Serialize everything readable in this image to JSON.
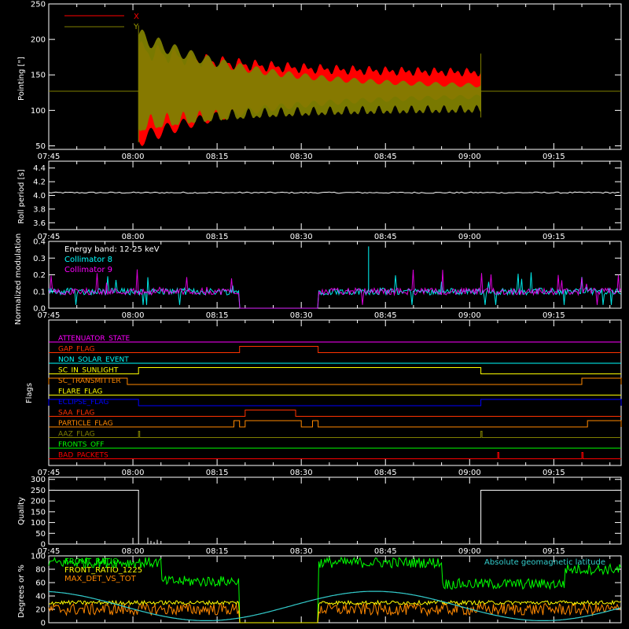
{
  "chart_data": [
    {
      "type": "line",
      "panel": "pointing",
      "ylabel": "Pointing [\"]",
      "ylim": [
        45,
        250
      ],
      "yticks": [
        50,
        100,
        150,
        200,
        250
      ],
      "xlim": [
        "07:45",
        "09:27"
      ],
      "xticks": [
        "07:45",
        "08:00",
        "08:15",
        "08:30",
        "08:45",
        "09:00",
        "09:15"
      ],
      "legend": "top-left",
      "series": [
        {
          "name": "X",
          "color": "#ff0000",
          "baseline": 127,
          "center_start": 122,
          "center_end": 137,
          "amp_start": 75,
          "amp_end": 18,
          "start": "08:01",
          "end": "09:02"
        },
        {
          "name": "Y",
          "color": "#808000",
          "baseline": 127,
          "center_start": 142,
          "center_end": 117,
          "amp_start": 75,
          "amp_end": 18,
          "start": "08:01",
          "end": "09:02"
        }
      ]
    },
    {
      "type": "line",
      "panel": "roll",
      "ylabel": "Roll period [s]",
      "ylim": [
        3.5,
        4.5
      ],
      "yticks": [
        3.6,
        3.8,
        4.0,
        4.2,
        4.4
      ],
      "value": 4.04,
      "color": "#ffffff"
    },
    {
      "type": "line",
      "panel": "modulation",
      "ylabel": "Normalized modulation",
      "ylim": [
        0,
        0.4
      ],
      "yticks": [
        0.0,
        0.1,
        0.2,
        0.3,
        0.4
      ],
      "annotation": "Energy band: 12-25 keV",
      "gap": [
        "08:19",
        "08:33"
      ],
      "series": [
        {
          "name": "Collimator 8",
          "color": "#00ffff",
          "level": 0.1
        },
        {
          "name": "Collimator 9",
          "color": "#ff00ff",
          "level": 0.1
        }
      ]
    },
    {
      "type": "line",
      "panel": "flags",
      "ylabel": "Flags",
      "flags": [
        {
          "name": "ATTENUATOR_STATE",
          "color": "#ff00ff",
          "steps": []
        },
        {
          "name": "GAP_FLAG",
          "color": "#ff3300",
          "steps": [
            [
              "08:19",
              "08:33"
            ]
          ]
        },
        {
          "name": "NON_SOLAR_EVENT",
          "color": "#00ffff",
          "steps": []
        },
        {
          "name": "SC_IN_SUNLIGHT",
          "color": "#ffff00",
          "steps": [
            [
              "08:01",
              "09:02"
            ]
          ]
        },
        {
          "name": "SC_TRANSMITTER",
          "color": "#ff8800",
          "steps": [
            [
              "07:45",
              "07:59"
            ],
            [
              "09:20",
              "09:27"
            ]
          ]
        },
        {
          "name": "FLARE_FLAG",
          "color": "#ffff00",
          "steps": []
        },
        {
          "name": "ECLIPSE_FLAG",
          "color": "#0000ff",
          "steps": [
            [
              "07:45",
              "08:01"
            ],
            [
              "09:02",
              "09:27"
            ]
          ]
        },
        {
          "name": "SAA_FLAG",
          "color": "#ff3300",
          "steps": [
            [
              "08:20",
              "08:29"
            ]
          ]
        },
        {
          "name": "PARTICLE_FLAG",
          "color": "#ff8800",
          "steps": [
            [
              "08:18",
              "08:19"
            ],
            [
              "08:20",
              "08:30"
            ],
            [
              "08:32",
              "08:33"
            ],
            [
              "09:21",
              "09:27"
            ]
          ]
        },
        {
          "name": "AAZ_FLAG",
          "color": "#808000",
          "steps": [
            [
              "08:01",
              "08:01"
            ],
            [
              "09:02",
              "09:02"
            ]
          ]
        },
        {
          "name": "FRONTS_OFF",
          "color": "#00ff00",
          "steps": []
        },
        {
          "name": "BAD_PACKETS",
          "color": "#ff0000",
          "steps": [
            [
              "09:05",
              "09:05"
            ],
            [
              "09:20",
              "09:20"
            ]
          ]
        }
      ]
    },
    {
      "type": "line",
      "panel": "quality",
      "ylabel": "Quality",
      "ylim": [
        0,
        310
      ],
      "yticks": [
        0,
        50,
        100,
        150,
        200,
        250,
        300
      ],
      "color": "#ffffff",
      "segments": [
        [
          "07:45",
          "08:01",
          250
        ],
        [
          "08:01",
          "09:02",
          0
        ],
        [
          "09:02",
          "09:27",
          250
        ]
      ]
    },
    {
      "type": "line",
      "panel": "ratios",
      "ylabel": "Degrees or %",
      "ylim": [
        0,
        100
      ],
      "yticks": [
        0,
        20,
        40,
        60,
        80,
        100
      ],
      "annotation": "Absolute geomagnetic latitude",
      "gap": [
        "08:19",
        "08:33"
      ],
      "series": [
        {
          "name": "FRONT_RATIO",
          "color": "#00ff00"
        },
        {
          "name": "FRONT_RATIO_1225",
          "color": "#ffff00"
        },
        {
          "name": "MAX_DET_VS_TOT",
          "color": "#ff8800"
        },
        {
          "name": "Absolute geomagnetic latitude",
          "color": "#33cccc"
        }
      ]
    }
  ]
}
